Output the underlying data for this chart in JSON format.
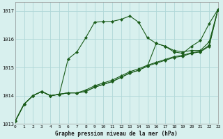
{
  "xlabel": "Graphe pression niveau de la mer (hPa)",
  "background_color": "#d8f0ee",
  "grid_color": "#b0d8d8",
  "line_color": "#1a5c1a",
  "ylim": [
    1013.0,
    1017.3
  ],
  "xlim": [
    0,
    23
  ],
  "yticks": [
    1013,
    1014,
    1015,
    1016,
    1017
  ],
  "xticks": [
    0,
    1,
    2,
    3,
    4,
    5,
    6,
    7,
    8,
    9,
    10,
    11,
    12,
    13,
    14,
    15,
    16,
    17,
    18,
    19,
    20,
    21,
    22,
    23
  ],
  "series": [
    [
      1013.1,
      1013.7,
      1014.0,
      1014.15,
      1014.0,
      1014.05,
      1015.3,
      1015.55,
      1016.05,
      1016.6,
      1016.62,
      1016.63,
      1016.7,
      1016.82,
      1016.6,
      1016.05,
      1015.85,
      1015.75,
      1015.55,
      1015.5,
      1015.75,
      1015.95,
      1016.55,
      1017.05
    ],
    [
      1013.1,
      1013.7,
      1014.0,
      1014.15,
      1014.0,
      1014.05,
      1014.1,
      1014.1,
      1014.15,
      1014.3,
      1014.4,
      1014.5,
      1014.65,
      1014.8,
      1014.9,
      1015.05,
      1015.85,
      1015.75,
      1015.6,
      1015.55,
      1015.6,
      1015.6,
      1015.9,
      1017.05
    ],
    [
      1013.1,
      1013.7,
      1014.0,
      1014.15,
      1014.0,
      1014.05,
      1014.1,
      1014.1,
      1014.15,
      1014.3,
      1014.4,
      1014.5,
      1014.65,
      1014.8,
      1014.9,
      1015.05,
      1015.15,
      1015.25,
      1015.35,
      1015.4,
      1015.5,
      1015.55,
      1015.75,
      1017.05
    ],
    [
      1013.1,
      1013.7,
      1014.0,
      1014.15,
      1014.0,
      1014.05,
      1014.1,
      1014.1,
      1014.2,
      1014.35,
      1014.45,
      1014.55,
      1014.7,
      1014.85,
      1014.95,
      1015.08,
      1015.18,
      1015.28,
      1015.38,
      1015.43,
      1015.52,
      1015.57,
      1015.78,
      1017.05
    ]
  ]
}
